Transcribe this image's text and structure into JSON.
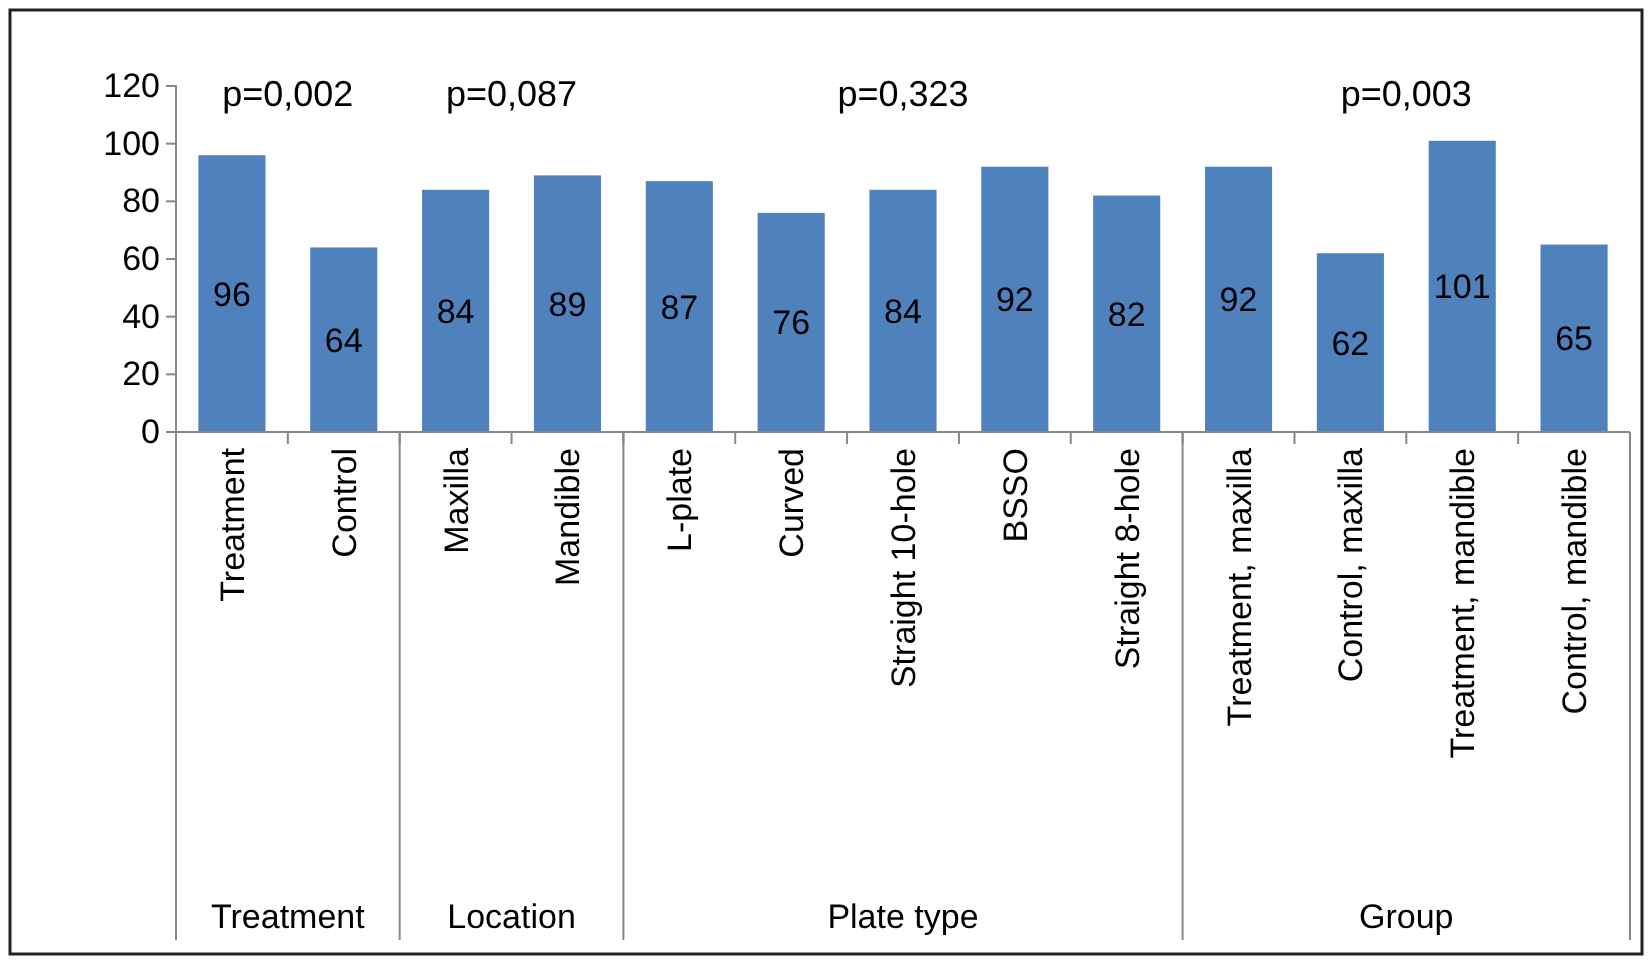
{
  "chart_data": {
    "type": "bar",
    "categories": [
      "Treatment",
      "Control",
      "Maxilla",
      "Mandible",
      "L-plate",
      "Curved",
      "Straight 10-hole",
      "BSSO",
      "Straight 8-hole",
      "Treatment, maxilla",
      "Control, maxilla",
      "Treatment, mandible",
      "Control, mandible"
    ],
    "values": [
      96,
      64,
      84,
      89,
      87,
      76,
      84,
      92,
      82,
      92,
      62,
      101,
      65
    ],
    "color": "#4f81bd",
    "ylim": [
      0,
      120
    ],
    "yticks": [
      0,
      20,
      40,
      60,
      80,
      100,
      120
    ],
    "data_labels": true,
    "annotations": [
      "p=0,002",
      "p=0,087",
      "p=0,323",
      "p=0,003",
      "Treatment",
      "Location",
      "Plate type",
      "Group"
    ]
  }
}
